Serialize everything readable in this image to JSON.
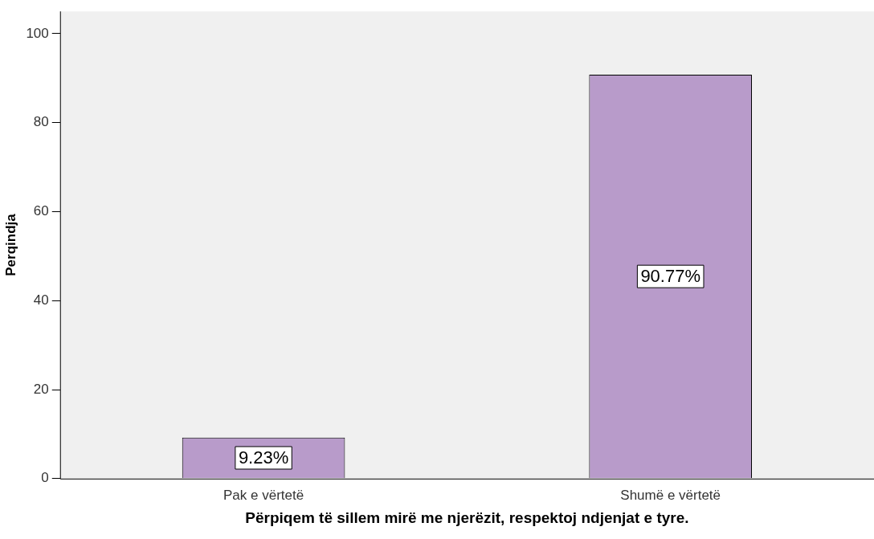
{
  "chart_data": {
    "type": "bar",
    "xlabel": "Përpiqem të sillem mirë me njerëzit, respektoj ndjenjat e tyre.",
    "ylabel": "Perqindja",
    "categories": [
      "Pak e vërtetë",
      "Shumë e vërtetë"
    ],
    "values": [
      9.23,
      90.77
    ],
    "value_labels": [
      "9.23%",
      "90.77%"
    ],
    "color": "#b89bca",
    "ylim": [
      0,
      105
    ],
    "yticks": [
      0,
      20,
      40,
      60,
      80,
      100
    ],
    "grid": false,
    "legend": false
  }
}
